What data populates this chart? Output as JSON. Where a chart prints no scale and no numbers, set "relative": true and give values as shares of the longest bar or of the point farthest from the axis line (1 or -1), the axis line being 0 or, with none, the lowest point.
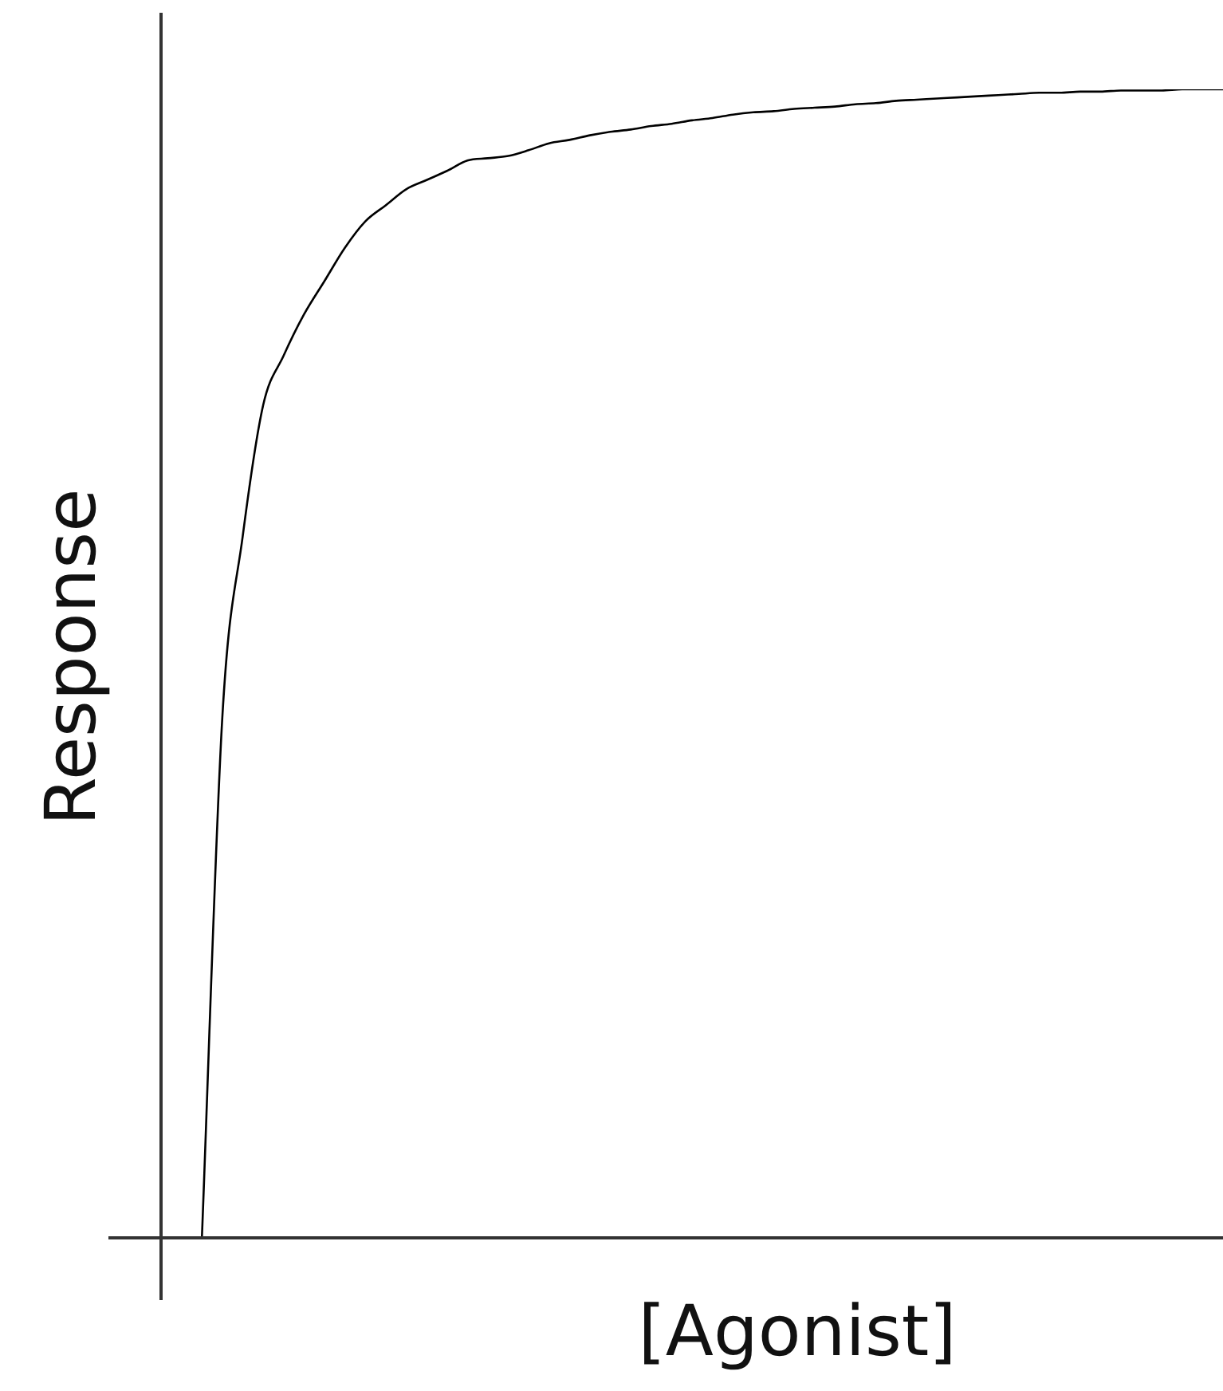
{
  "chart_data": {
    "type": "line",
    "xlabel": "[Agonist]",
    "ylabel": "Response",
    "relative": true,
    "legend": false,
    "marker": "none",
    "line_style": "solid",
    "categories": [
      null,
      null,
      null,
      null,
      null,
      null,
      null,
      null,
      null,
      null,
      null,
      null,
      null,
      null,
      null,
      null,
      null,
      null,
      null,
      null,
      null,
      null,
      null,
      null,
      null,
      null,
      null,
      null,
      null,
      null,
      null,
      null,
      null,
      null,
      null,
      null,
      null,
      null,
      null,
      null,
      null,
      null,
      null,
      null,
      null,
      null,
      null,
      null,
      null,
      null,
      null,
      null,
      null
    ],
    "series": [
      {
        "color": "#000000",
        "values": [
          null,
          null,
          0,
          0.453,
          0.611,
          0.725,
          0.768,
          0.804,
          0.833,
          0.862,
          0.885,
          0.899,
          0.913,
          0.921,
          0.929,
          0.938,
          0.94,
          0.942,
          0.947,
          0.953,
          0.956,
          0.96,
          0.963,
          0.965,
          0.968,
          0.97,
          0.973,
          0.975,
          0.978,
          0.98,
          0.981,
          0.983,
          0.984,
          0.985,
          0.987,
          0.988,
          0.99,
          0.991,
          0.992,
          0.993,
          0.994,
          0.995,
          0.996,
          0.997,
          0.997,
          0.998,
          0.998,
          0.999,
          0.999,
          0.999,
          1,
          1,
          1
        ]
      }
    ]
  }
}
